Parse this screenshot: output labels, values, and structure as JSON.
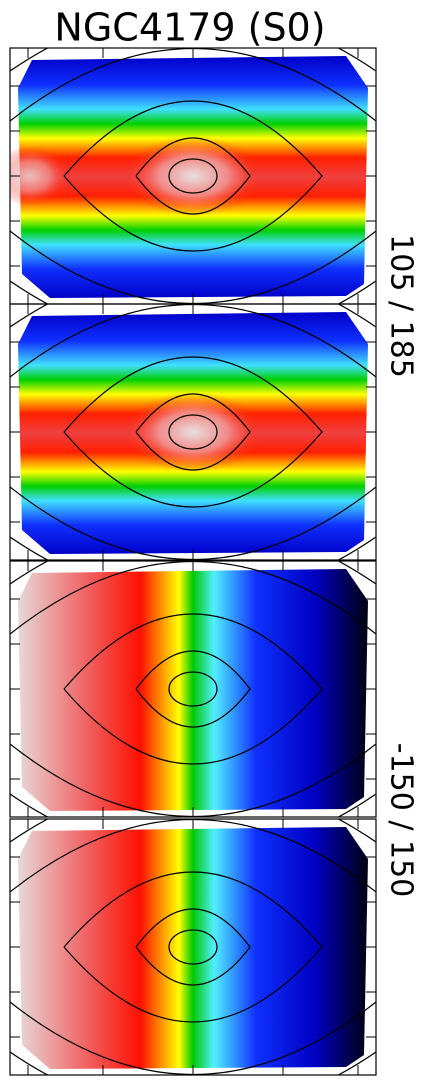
{
  "title": "NGC4179 (S0)",
  "range_labels": [
    "105 / 185",
    "-150 / 150"
  ]
}
